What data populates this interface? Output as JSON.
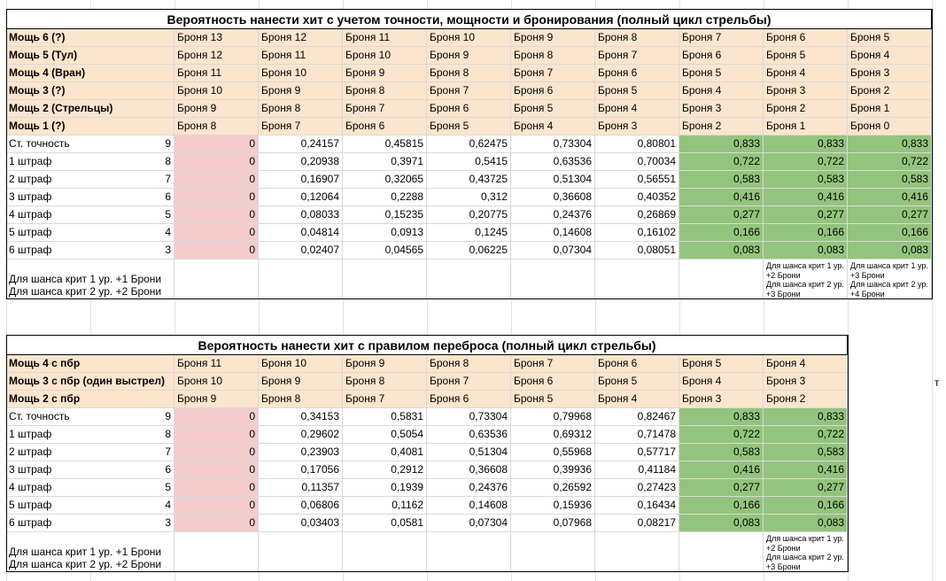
{
  "tables": [
    {
      "title": "Вероятность нанести хит с учетом точности, мощности и бронирования (полный цикл стрельбы)",
      "header_rows": [
        [
          "Мощь 6 (?)",
          "Броня 13",
          "Броня 12",
          "Броня 11",
          "Броня 10",
          "Броня 9",
          "Броня 8",
          "Броня 7",
          "Броня 6",
          "Броня 5"
        ],
        [
          "Мощь 5 (Тул)",
          "Броня 12",
          "Броня 11",
          "Броня 10",
          "Броня 9",
          "Броня 8",
          "Броня 7",
          "Броня 6",
          "Броня 5",
          "Броня 4"
        ],
        [
          "Мощь 4 (Вран)",
          "Броня 11",
          "Броня 10",
          "Броня 9",
          "Броня 8",
          "Броня 7",
          "Броня 6",
          "Броня 5",
          "Броня 4",
          "Броня 3"
        ],
        [
          "Мощь 3 (?)",
          "Броня 10",
          "Броня 9",
          "Броня 8",
          "Броня 7",
          "Броня 6",
          "Броня 5",
          "Броня 4",
          "Броня 3",
          "Броня 2"
        ],
        [
          "Мощь 2 (Стрельцы)",
          "Броня 9",
          "Броня 8",
          "Броня 7",
          "Броня 6",
          "Броня 5",
          "Броня 4",
          "Броня 3",
          "Броня 2",
          "Броня 1"
        ],
        [
          "Мощь 1 (?)",
          "Броня 8",
          "Броня 7",
          "Броня 6",
          "Броня 5",
          "Броня 4",
          "Броня 3",
          "Броня 2",
          "Броня 1",
          "Броня 0"
        ]
      ],
      "data_rows": [
        [
          "Ст. точность",
          "9",
          "0",
          "0,24157",
          "0,45815",
          "0,62475",
          "0,73304",
          "0,80801",
          "0,833",
          "0,833",
          "0,833"
        ],
        [
          "1 штраф",
          "8",
          "0",
          "0,20938",
          "0,3971",
          "0,5415",
          "0,63536",
          "0,70034",
          "0,722",
          "0,722",
          "0,722"
        ],
        [
          "2 штраф",
          "7",
          "0",
          "0,16907",
          "0,32065",
          "0,43725",
          "0,51304",
          "0,56551",
          "0,583",
          "0,583",
          "0,583"
        ],
        [
          "3 штраф",
          "6",
          "0",
          "0,12064",
          "0,2288",
          "0,312",
          "0,36608",
          "0,40352",
          "0,416",
          "0,416",
          "0,416"
        ],
        [
          "4 штраф",
          "5",
          "0",
          "0,08033",
          "0,15235",
          "0,20775",
          "0,24376",
          "0,26869",
          "0,277",
          "0,277",
          "0,277"
        ],
        [
          "5 штраф",
          "4",
          "0",
          "0,04814",
          "0,0913",
          "0,1245",
          "0,14608",
          "0,16102",
          "0,166",
          "0,166",
          "0,166"
        ],
        [
          "6 штраф",
          "3",
          "0",
          "0,02407",
          "0,04565",
          "0,06225",
          "0,07304",
          "0,08051",
          "0,083",
          "0,083",
          "0,083"
        ]
      ],
      "left_note": [
        "Для шанса крит 1 ур. +1 Брони",
        "Для шанса крит 2 ур. +2 Брони"
      ],
      "side_notes": [
        [
          "Для шанса крит 1 ур.",
          "+2 Брони",
          "Для шанса крит 2 ур.",
          "+3 Брони"
        ],
        [
          "Для шанса крит 1 ур.",
          "+3 Брони",
          "Для шанса крит 2 ур.",
          "+4 Брони"
        ]
      ]
    },
    {
      "title": "Вероятность нанести хит с правилом переброса (полный цикл стрельбы)",
      "header_rows": [
        [
          "Мощь 4 с пбр",
          "Броня 11",
          "Броня 10",
          "Броня 9",
          "Броня 8",
          "Броня 7",
          "Броня 6",
          "Броня 5",
          "Броня 4"
        ],
        [
          "Мощь 3 с пбр (один выстрел)",
          "Броня 10",
          "Броня 9",
          "Броня 8",
          "Броня 7",
          "Броня 6",
          "Броня 5",
          "Броня 4",
          "Броня 3"
        ],
        [
          "Мощь 2 с пбр",
          "Броня 9",
          "Броня 8",
          "Броня 7",
          "Броня 6",
          "Броня 5",
          "Броня 4",
          "Броня 3",
          "Броня 2"
        ]
      ],
      "data_rows": [
        [
          "Ст. точность",
          "9",
          "0",
          "0,34153",
          "0,5831",
          "0,73304",
          "0,79968",
          "0,82467",
          "0,833",
          "0,833"
        ],
        [
          "1 штраф",
          "8",
          "0",
          "0,29602",
          "0,5054",
          "0,63536",
          "0,69312",
          "0,71478",
          "0,722",
          "0,722"
        ],
        [
          "2 штраф",
          "7",
          "0",
          "0,23903",
          "0,4081",
          "0,51304",
          "0,55968",
          "0,57717",
          "0,583",
          "0,583"
        ],
        [
          "3 штраф",
          "6",
          "0",
          "0,17056",
          "0,2912",
          "0,36608",
          "0,39936",
          "0,41184",
          "0,416",
          "0,416"
        ],
        [
          "4 штраф",
          "5",
          "0",
          "0,11357",
          "0,1939",
          "0,24376",
          "0,26592",
          "0,27423",
          "0,277",
          "0,277"
        ],
        [
          "5 штраф",
          "4",
          "0",
          "0,06806",
          "0,1162",
          "0,14608",
          "0,15936",
          "0,16434",
          "0,166",
          "0,166"
        ],
        [
          "6 штраф",
          "3",
          "0",
          "0,03403",
          "0,0581",
          "0,07304",
          "0,07968",
          "0,08217",
          "0,083",
          "0,083"
        ]
      ],
      "left_note": [
        "Для шанса крит 1 ур. +1 Брони",
        "Для шанса крит 2 ур. +2 Брони"
      ],
      "side_notes": [
        [
          "Для шанса крит 1 ур.",
          "+2 Брони",
          "Для шанса крит 2 ур.",
          "+3 Брони"
        ]
      ]
    }
  ],
  "stray_cell": "т"
}
